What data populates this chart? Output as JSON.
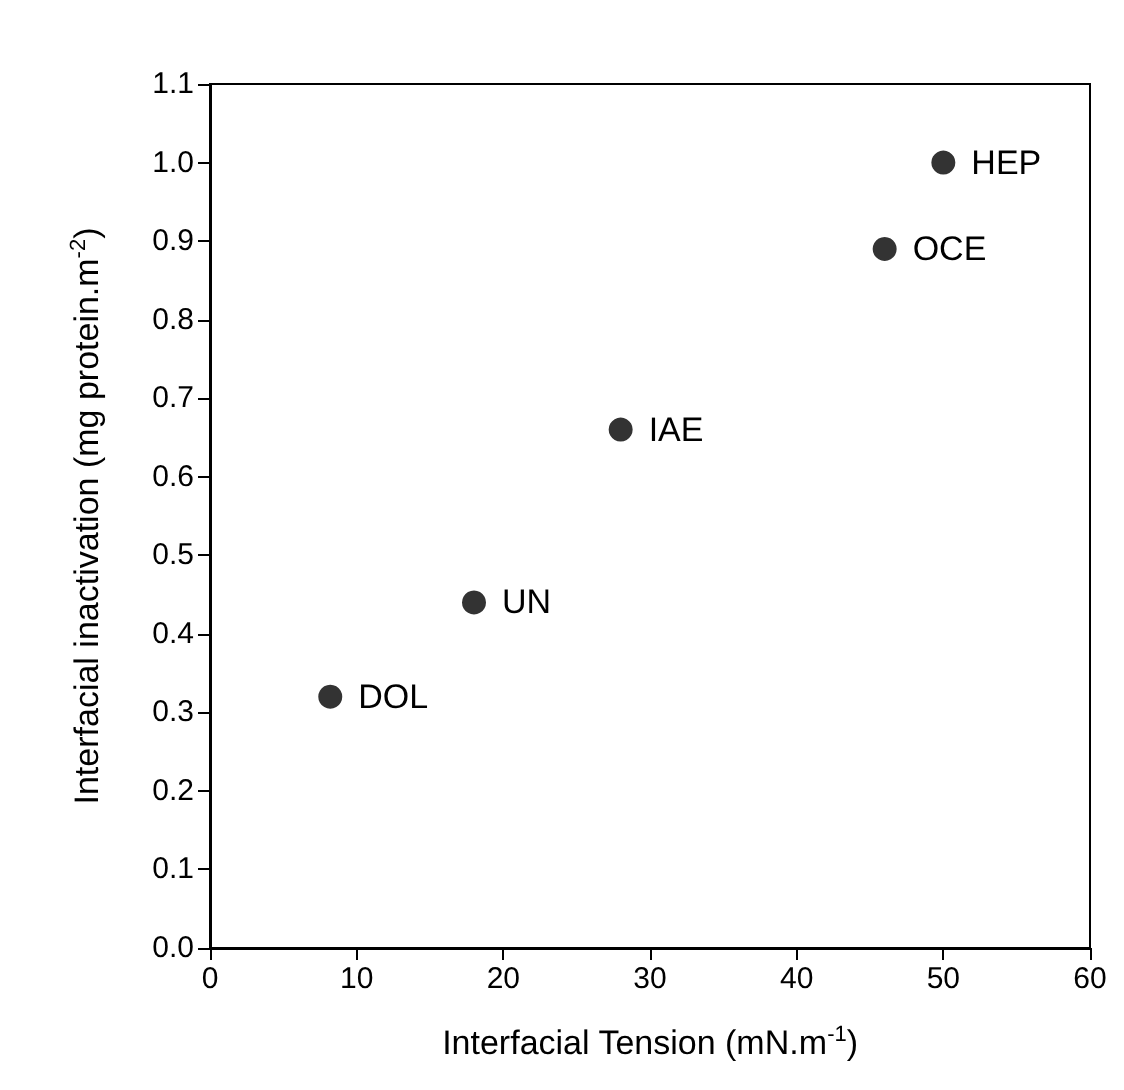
{
  "chart_data": {
    "type": "scatter",
    "xlabel": "Interfacial Tension (mN.m$^{-1}$)",
    "ylabel": "Interfacial inactivation (mg protein.m$^{-2}$)",
    "x": [
      8.2,
      18,
      28,
      46,
      50
    ],
    "values": [
      0.32,
      0.44,
      0.66,
      0.89,
      1.0
    ],
    "color": "#000000",
    "marker": "circle",
    "xlim": [
      0,
      60
    ],
    "xticks": [
      0,
      10,
      20,
      30,
      40,
      50,
      60
    ],
    "ylim": [
      0,
      1.1
    ],
    "yticks": [
      "0.0",
      0.1,
      0.2,
      0.3,
      0.4,
      0.5,
      0.6,
      0.7,
      0.8,
      0.9,
      "1.0",
      1.1
    ],
    "grid": false,
    "annotations": [
      {
        "text": "DOL",
        "x": 8.2,
        "y": 0.32
      },
      {
        "text": "UN",
        "x": 18,
        "y": 0.44
      },
      {
        "text": "IAE",
        "x": 28,
        "y": 0.66
      },
      {
        "text": "OCE",
        "x": 46,
        "y": 0.89
      },
      {
        "text": "HEP",
        "x": 50,
        "y": 1.0
      }
    ]
  }
}
